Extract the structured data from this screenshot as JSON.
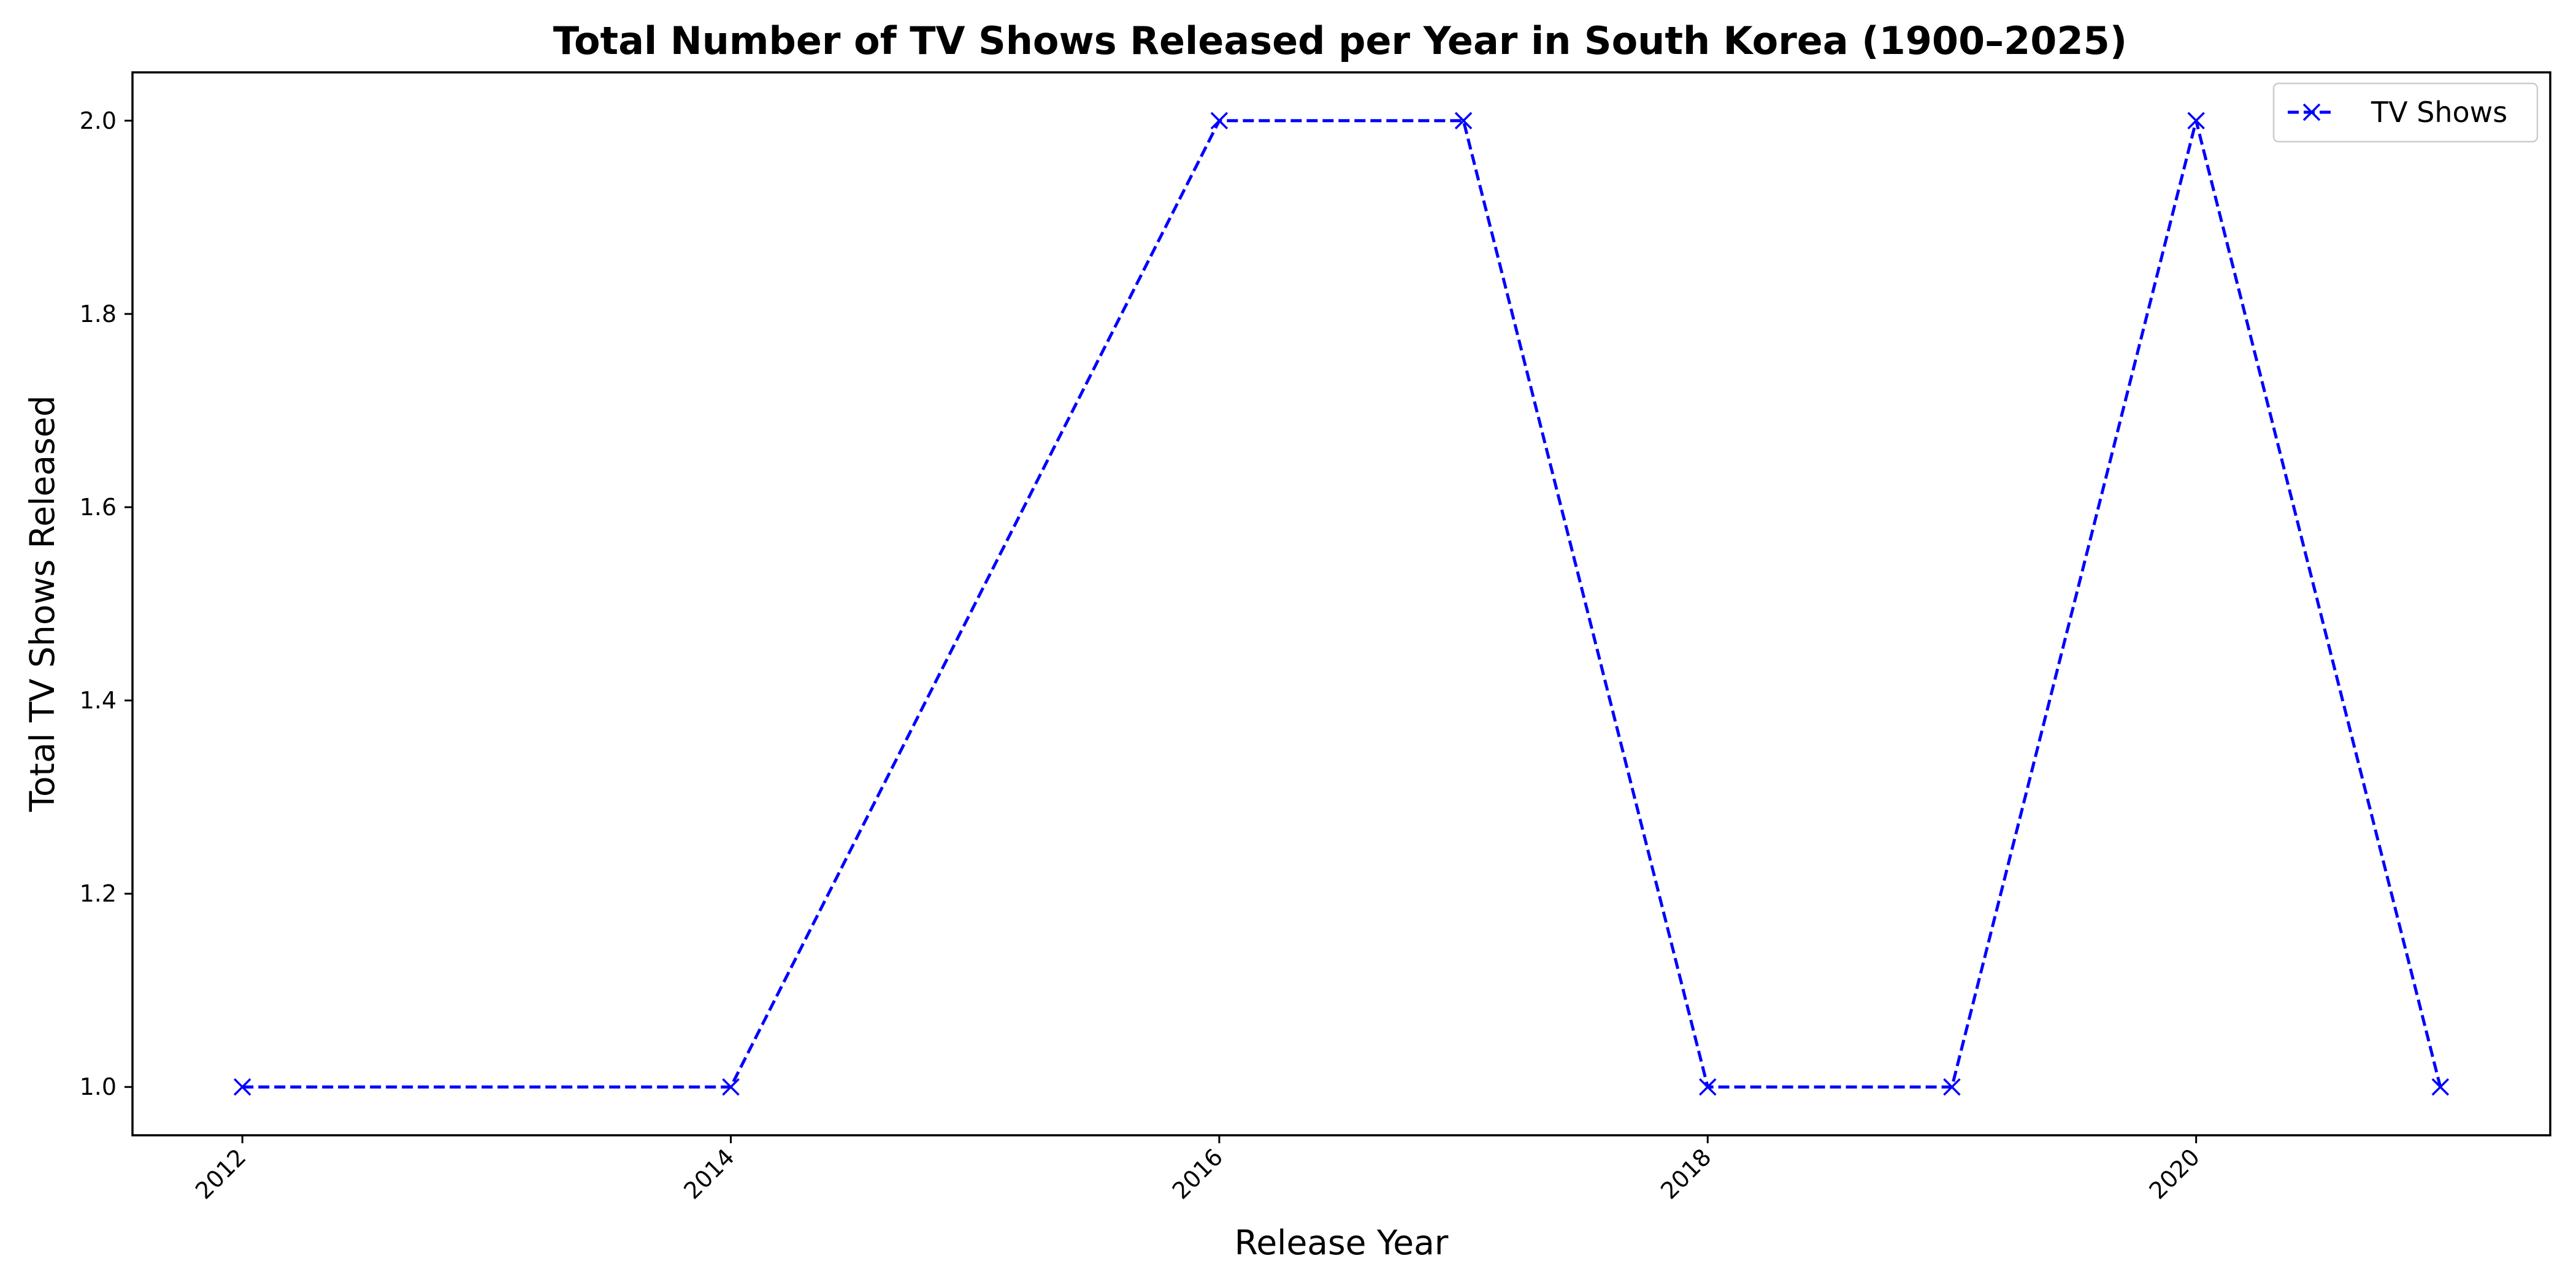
{
  "chart_data": {
    "type": "line",
    "title": "Total Number of TV Shows Released per Year in South Korea (1900–2025)",
    "xlabel": "Release Year",
    "ylabel": "Total TV Shows Released",
    "x_ticks": [
      "2012",
      "2014",
      "2016",
      "2018",
      "2020"
    ],
    "y_ticks": [
      "1.0",
      "1.2",
      "1.4",
      "1.6",
      "1.8",
      "2.0"
    ],
    "xlim": [
      2011.55,
      2021.45
    ],
    "ylim": [
      0.95,
      2.05
    ],
    "grid": false,
    "legend_position": "top-right",
    "series": [
      {
        "name": "TV Shows",
        "color": "#0000ff",
        "line_style": "dashed",
        "marker": "x",
        "x": [
          2012,
          2014,
          2016,
          2017,
          2018,
          2019,
          2020,
          2021
        ],
        "y": [
          1,
          1,
          2,
          2,
          1,
          1,
          2,
          1
        ]
      }
    ]
  }
}
